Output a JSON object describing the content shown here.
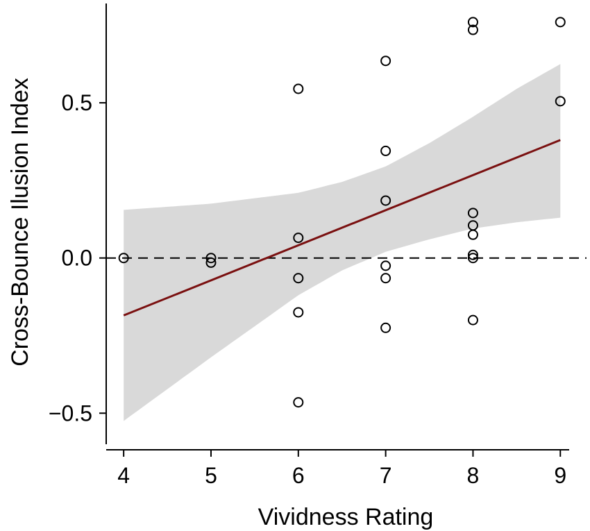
{
  "chart_data": {
    "type": "scatter",
    "xlabel": "Vividness Rating",
    "ylabel": "Cross-Bounce Ilusion Index",
    "xlim": [
      3.8,
      9.3
    ],
    "ylim": [
      -0.6,
      0.82
    ],
    "xticks": [
      4,
      5,
      6,
      7,
      8,
      9
    ],
    "xtick_labels": [
      "4",
      "5",
      "6",
      "7",
      "8",
      "9"
    ],
    "yticks": [
      0.5,
      0.0,
      -0.5
    ],
    "ytick_labels": [
      "0.5",
      "0.0",
      "−0.5"
    ],
    "reference_line": {
      "y": 0.0,
      "style": "dashed"
    },
    "points": [
      {
        "x": 4,
        "y": 0.0
      },
      {
        "x": 5,
        "y": 0.0
      },
      {
        "x": 5,
        "y": -0.015
      },
      {
        "x": 6,
        "y": 0.545
      },
      {
        "x": 6,
        "y": 0.065
      },
      {
        "x": 6,
        "y": -0.065
      },
      {
        "x": 6,
        "y": -0.175
      },
      {
        "x": 6,
        "y": -0.465
      },
      {
        "x": 7,
        "y": 0.635
      },
      {
        "x": 7,
        "y": 0.345
      },
      {
        "x": 7,
        "y": 0.185
      },
      {
        "x": 7,
        "y": -0.025
      },
      {
        "x": 7,
        "y": -0.065
      },
      {
        "x": 7,
        "y": -0.225
      },
      {
        "x": 8,
        "y": 0.76
      },
      {
        "x": 8,
        "y": 0.735
      },
      {
        "x": 8,
        "y": 0.145
      },
      {
        "x": 8,
        "y": 0.105
      },
      {
        "x": 8,
        "y": 0.075
      },
      {
        "x": 8,
        "y": 0.01
      },
      {
        "x": 8,
        "y": 0.0
      },
      {
        "x": 8,
        "y": -0.2
      },
      {
        "x": 9,
        "y": 0.76
      },
      {
        "x": 9,
        "y": 0.505
      }
    ],
    "fit_line": {
      "x": [
        4,
        9
      ],
      "y": [
        -0.185,
        0.38
      ]
    },
    "confidence_band": {
      "x": [
        4,
        5,
        6,
        6.5,
        7,
        7.5,
        8,
        8.5,
        9
      ],
      "upper": [
        0.155,
        0.175,
        0.21,
        0.245,
        0.295,
        0.37,
        0.455,
        0.545,
        0.625
      ],
      "lower": [
        -0.525,
        -0.32,
        -0.12,
        -0.04,
        0.02,
        0.06,
        0.095,
        0.115,
        0.13
      ]
    },
    "colors": {
      "fit_line": "#7a1010",
      "band": "#d9d9d9",
      "points_stroke": "#000000",
      "axis": "#000000"
    },
    "grid": false,
    "legend": "none"
  }
}
